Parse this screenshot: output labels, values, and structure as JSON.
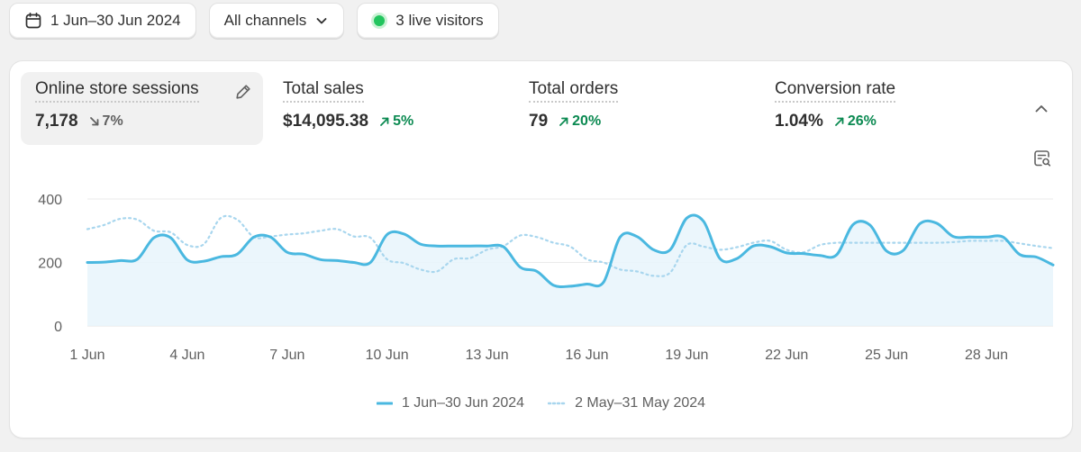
{
  "filters": {
    "date_range": "1 Jun–30 Jun 2024",
    "channel": "All channels",
    "live_visitors": "3 live visitors"
  },
  "metrics": [
    {
      "label": "Online store sessions",
      "value": "7,178",
      "delta": "7%",
      "direction": "down",
      "active": true
    },
    {
      "label": "Total sales",
      "value": "$14,095.38",
      "delta": "5%",
      "direction": "up",
      "active": false
    },
    {
      "label": "Total orders",
      "value": "79",
      "delta": "20%",
      "direction": "up",
      "active": false
    },
    {
      "label": "Conversion rate",
      "value": "1.04%",
      "delta": "26%",
      "direction": "up",
      "active": false
    }
  ],
  "icons": {
    "date": "calendar-icon",
    "channel_dropdown": "chevron-down-icon",
    "live": "live-status-dot-icon",
    "edit": "pencil-icon",
    "collapse": "chevron-up-icon",
    "explore": "report-search-icon"
  },
  "colors": {
    "primary_series": "#4ab8e0",
    "comparison_series": "#a8d6ee",
    "area_fill": "#e8f5fb",
    "delta_up": "#0c8a52",
    "delta_down": "#616161",
    "live_dot": "#22c55e"
  },
  "chart_data": {
    "type": "line",
    "ylim": [
      0,
      400
    ],
    "y_ticks": [
      0,
      200,
      400
    ],
    "x_ticks": [
      {
        "day": 1,
        "label": "1 Jun"
      },
      {
        "day": 4,
        "label": "4 Jun"
      },
      {
        "day": 7,
        "label": "7 Jun"
      },
      {
        "day": 10,
        "label": "10 Jun"
      },
      {
        "day": 13,
        "label": "13 Jun"
      },
      {
        "day": 16,
        "label": "16 Jun"
      },
      {
        "day": 19,
        "label": "19 Jun"
      },
      {
        "day": 22,
        "label": "22 Jun"
      },
      {
        "day": 25,
        "label": "25 Jun"
      },
      {
        "day": 28,
        "label": "28 Jun"
      }
    ],
    "grid": true,
    "legend_position": "bottom-center",
    "series": [
      {
        "name": "1 Jun–30 Jun 2024",
        "style": "solid",
        "x": [
          1,
          1.5,
          2,
          2.5,
          3,
          3.5,
          4,
          4.5,
          5,
          5.5,
          6,
          6.5,
          7,
          7.5,
          8,
          8.5,
          9,
          9.5,
          10,
          10.5,
          11,
          11.5,
          12,
          12.5,
          13,
          13.5,
          14,
          14.5,
          15,
          15.5,
          16,
          16.5,
          17,
          17.5,
          18,
          18.5,
          19,
          19.5,
          20,
          20.5,
          21,
          21.5,
          22,
          22.5,
          23,
          23.5,
          24,
          24.5,
          25,
          25.5,
          26,
          26.5,
          27,
          27.5,
          28,
          28.5,
          29,
          29.5,
          30
        ],
        "values": [
          200,
          201,
          206,
          210,
          278,
          278,
          208,
          204,
          218,
          226,
          280,
          280,
          232,
          226,
          209,
          206,
          200,
          200,
          288,
          290,
          258,
          252,
          252,
          252,
          252,
          249,
          185,
          172,
          128,
          125,
          132,
          138,
          280,
          282,
          240,
          240,
          340,
          330,
          212,
          212,
          252,
          250,
          230,
          228,
          222,
          224,
          320,
          318,
          236,
          238,
          322,
          324,
          282,
          280,
          280,
          280,
          225,
          217,
          192
        ]
      },
      {
        "name": "2 May–31 May 2024",
        "style": "dotted",
        "x": [
          1,
          1.5,
          2,
          2.5,
          3,
          3.5,
          4,
          4.5,
          5,
          5.5,
          6,
          6.5,
          7,
          7.5,
          8,
          8.5,
          9,
          9.5,
          10,
          10.5,
          11,
          11.5,
          12,
          12.5,
          13,
          13.5,
          14,
          14.5,
          15,
          15.5,
          16,
          16.5,
          17,
          17.5,
          18,
          18.5,
          19,
          19.5,
          20,
          20.5,
          21,
          21.5,
          22,
          22.5,
          23,
          23.5,
          24,
          24.5,
          25,
          25.5,
          26,
          26.5,
          27,
          27.5,
          28,
          28.5,
          29,
          29.5,
          30
        ],
        "values": [
          305,
          318,
          338,
          335,
          300,
          295,
          255,
          258,
          340,
          335,
          280,
          282,
          288,
          292,
          300,
          305,
          282,
          278,
          210,
          198,
          178,
          172,
          210,
          214,
          240,
          252,
          285,
          280,
          262,
          250,
          210,
          200,
          178,
          172,
          158,
          168,
          255,
          250,
          240,
          248,
          262,
          268,
          240,
          232,
          255,
          262,
          262,
          262,
          262,
          262,
          262,
          262,
          264,
          268,
          268,
          268,
          260,
          252,
          245
        ]
      }
    ]
  }
}
